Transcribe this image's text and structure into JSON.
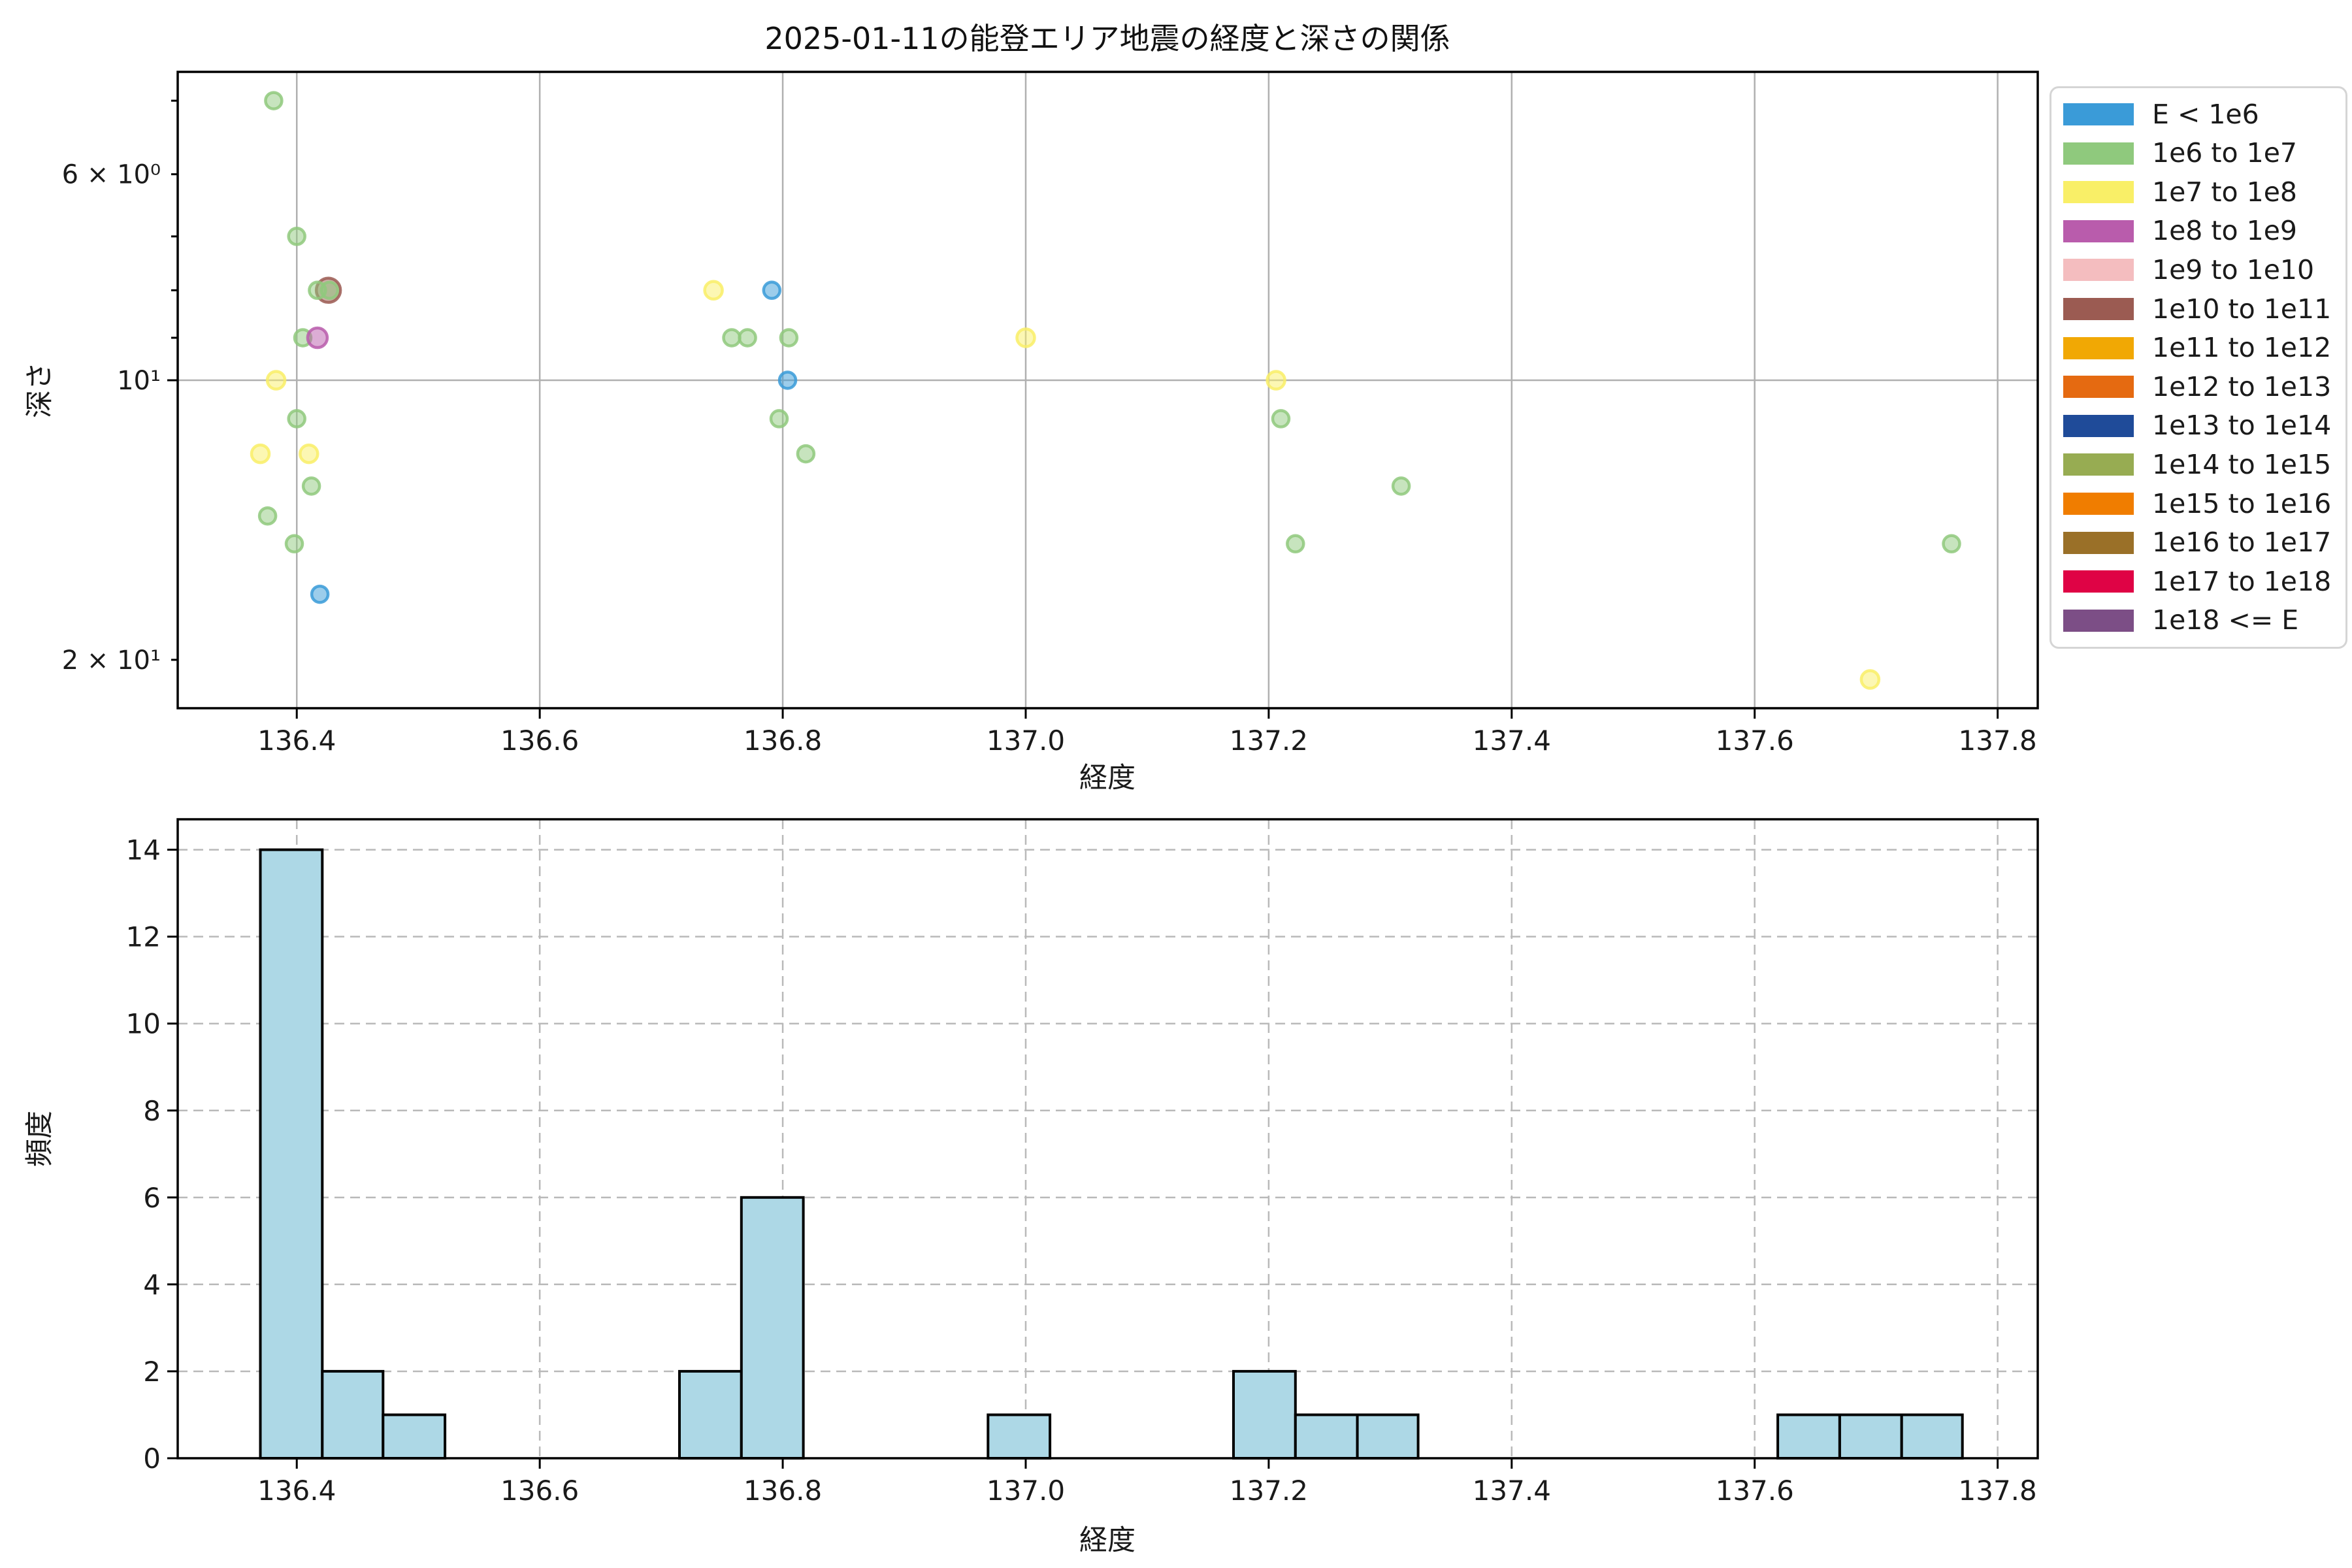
{
  "figure": {
    "title": "2025-01-11の能登エリア地震の経度と深さの関係"
  },
  "legend": {
    "items": [
      {
        "label": "E < 1e6",
        "color": "#3A9BD8"
      },
      {
        "label": "1e6 to 1e7",
        "color": "#8FC97D"
      },
      {
        "label": "1e7 to 1e8",
        "color": "#F9EF67"
      },
      {
        "label": "1e8 to 1e9",
        "color": "#B95CAC"
      },
      {
        "label": "1e9 to 1e10",
        "color": "#F4BDBF"
      },
      {
        "label": "1e10 to 1e11",
        "color": "#9B5B52"
      },
      {
        "label": "1e11 to 1e12",
        "color": "#F1A804"
      },
      {
        "label": "1e12 to 1e13",
        "color": "#E56A11"
      },
      {
        "label": "1e13 to 1e14",
        "color": "#1F4B99"
      },
      {
        "label": "1e14 to 1e15",
        "color": "#97AC52"
      },
      {
        "label": "1e15 to 1e16",
        "color": "#F07D00"
      },
      {
        "label": "1e16 to 1e17",
        "color": "#9A7028"
      },
      {
        "label": "1e17 to 1e18",
        "color": "#DF0345"
      },
      {
        "label": "1e18 <= E",
        "color": "#7C4E86"
      }
    ]
  },
  "chart_data": [
    {
      "type": "scatter",
      "title": "2025-01-11の能登エリア地震の経度と深さの関係",
      "xlabel": "経度",
      "ylabel": "深さ",
      "xlim": [
        136.302,
        137.833
      ],
      "ylim_depth_top_to_bottom": [
        4.655,
        22.55
      ],
      "yscale": "log-inverted",
      "x_ticks": [
        136.4,
        136.6,
        136.8,
        137.0,
        137.2,
        137.4,
        137.6,
        137.8
      ],
      "y_ticks": [
        {
          "value": 6,
          "label": "6 × 10⁰",
          "major": false
        },
        {
          "value": 10,
          "label": "10¹",
          "major": true
        },
        {
          "value": 20,
          "label": "2 × 10¹",
          "major": false
        }
      ],
      "y_minor_ticks": [
        5,
        7,
        8,
        9
      ],
      "grid_x_values": [
        136.4,
        136.6,
        136.8,
        137.0,
        137.2,
        137.4,
        137.6,
        137.8
      ],
      "grid_y_values": [
        10
      ],
      "series": [
        {
          "name": "1e10 to 1e11",
          "color": "#9B5B52",
          "marker_radius": 18.5,
          "points": [
            [
              136.426,
              8
            ]
          ]
        },
        {
          "name": "E < 1e6",
          "color": "#3A9BD8",
          "marker_radius": 12.5,
          "points": [
            [
              136.419,
              17
            ],
            [
              136.791,
              8
            ],
            [
              136.804,
              10
            ]
          ]
        },
        {
          "name": "1e6 to 1e7",
          "color": "#8FC97D",
          "marker_radius": 12.5,
          "points": [
            [
              136.381,
              5
            ],
            [
              136.4,
              7
            ],
            [
              136.417,
              8
            ],
            [
              136.427,
              8
            ],
            [
              136.405,
              9
            ],
            [
              136.4,
              11
            ],
            [
              136.412,
              13
            ],
            [
              136.376,
              14
            ],
            [
              136.398,
              15
            ],
            [
              136.758,
              9
            ],
            [
              136.771,
              9
            ],
            [
              136.805,
              9
            ],
            [
              136.797,
              11
            ],
            [
              136.819,
              12
            ],
            [
              137.21,
              11
            ],
            [
              137.309,
              13
            ],
            [
              137.222,
              15
            ],
            [
              137.762,
              15
            ]
          ]
        },
        {
          "name": "1e7 to 1e8",
          "color": "#F9EF67",
          "marker_radius": 13.5,
          "points": [
            [
              136.383,
              10
            ],
            [
              136.37,
              12
            ],
            [
              136.41,
              12
            ],
            [
              136.743,
              8
            ],
            [
              137.0,
              9
            ],
            [
              137.206,
              10
            ],
            [
              137.695,
              21
            ]
          ]
        },
        {
          "name": "1e8 to 1e9",
          "color": "#B95CAC",
          "marker_radius": 15,
          "points": [
            [
              136.417,
              9
            ]
          ]
        }
      ]
    },
    {
      "type": "bar",
      "xlabel": "経度",
      "ylabel": "頻度",
      "xlim": [
        136.302,
        137.833
      ],
      "ylim": [
        0,
        14.7
      ],
      "x_ticks": [
        136.4,
        136.6,
        136.8,
        137.0,
        137.2,
        137.4,
        137.6,
        137.8
      ],
      "y_ticks": [
        0,
        2,
        4,
        6,
        8,
        10,
        12,
        14
      ],
      "grid_style": "dashed",
      "bar_fill": "#ADD8E6",
      "bar_edge": "#000000",
      "bars": [
        {
          "x0": 136.37,
          "x1": 136.421,
          "count": 14
        },
        {
          "x0": 136.421,
          "x1": 136.471,
          "count": 2
        },
        {
          "x0": 136.471,
          "x1": 136.522,
          "count": 1
        },
        {
          "x0": 136.715,
          "x1": 136.766,
          "count": 2
        },
        {
          "x0": 136.766,
          "x1": 136.817,
          "count": 6
        },
        {
          "x0": 136.969,
          "x1": 137.02,
          "count": 1
        },
        {
          "x0": 137.171,
          "x1": 137.222,
          "count": 2
        },
        {
          "x0": 137.222,
          "x1": 137.273,
          "count": 1
        },
        {
          "x0": 137.273,
          "x1": 137.323,
          "count": 1
        },
        {
          "x0": 137.619,
          "x1": 137.67,
          "count": 1
        },
        {
          "x0": 137.67,
          "x1": 137.721,
          "count": 1
        },
        {
          "x0": 137.721,
          "x1": 137.771,
          "count": 1
        }
      ]
    }
  ]
}
